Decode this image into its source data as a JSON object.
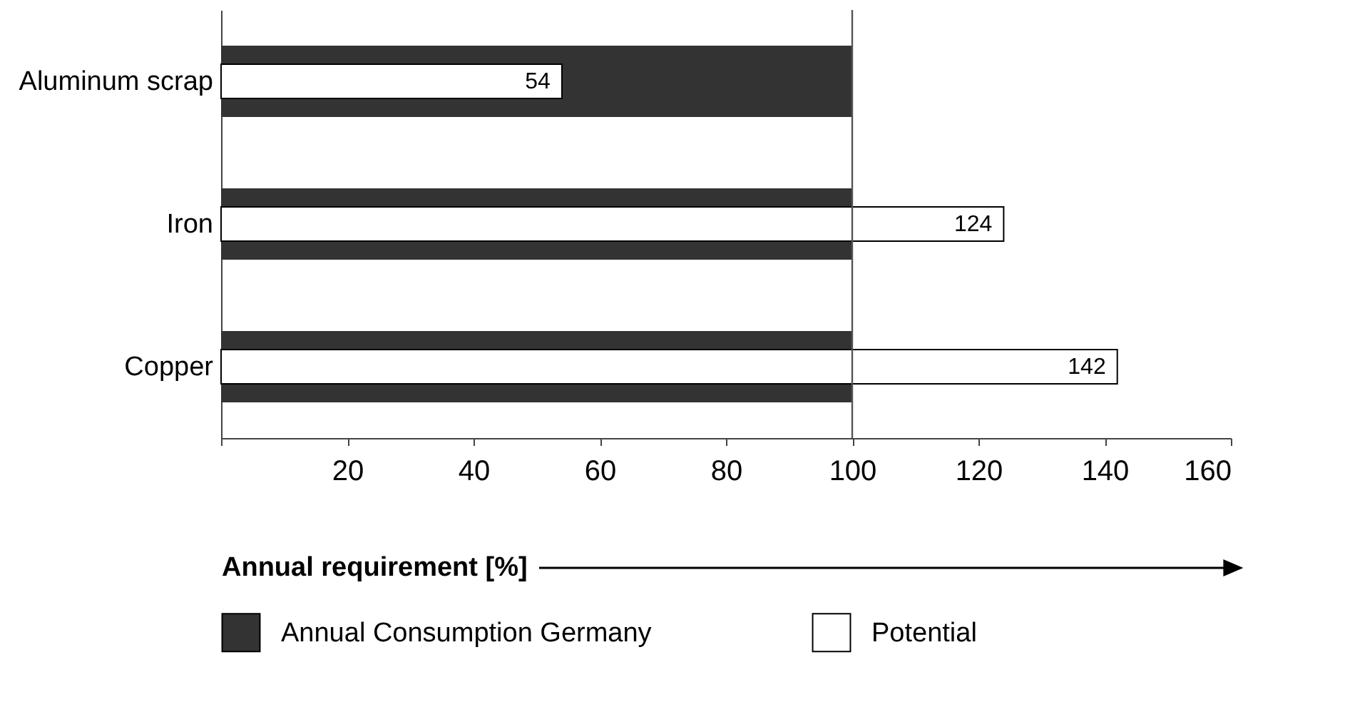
{
  "chart_data": {
    "type": "bar",
    "orientation": "horizontal",
    "categories": [
      "Aluminum scrap",
      "Iron",
      "Copper"
    ],
    "series": [
      {
        "name": "Annual Consumption Germany",
        "color": "#333333",
        "values": [
          100,
          100,
          100
        ]
      },
      {
        "name": "Potential",
        "color": "#ffffff",
        "values": [
          54,
          124,
          142
        ],
        "value_labels": [
          "54",
          "124",
          "142"
        ]
      }
    ],
    "xlim": [
      0,
      160
    ],
    "xticks": [
      {
        "value": 0,
        "label": null
      },
      20,
      40,
      60,
      80,
      100,
      120,
      140,
      160
    ],
    "xlabel": "Annual requirement [%]",
    "ref_lines": [
      {
        "axis": "x",
        "value": 100,
        "color": "#555555"
      }
    ],
    "legend": "bottom"
  }
}
